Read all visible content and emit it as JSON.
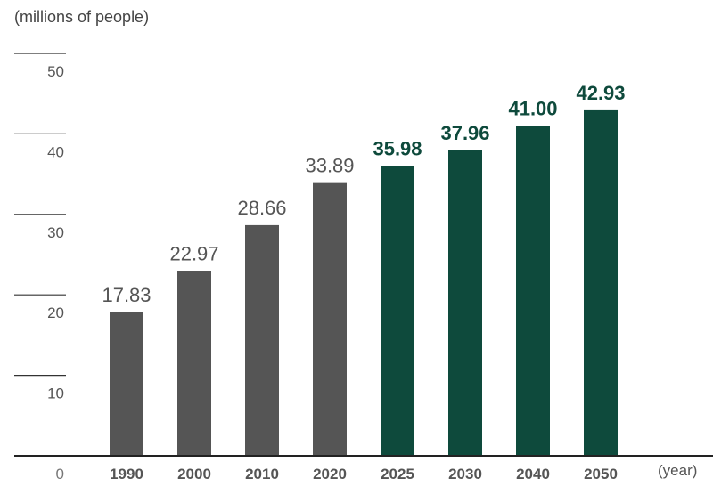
{
  "chart_data": {
    "type": "bar",
    "ylabel": "(millions of people)",
    "xlabel": "(year)",
    "categories": [
      "1990",
      "2000",
      "2010",
      "2020",
      "2025",
      "2030",
      "2040",
      "2050"
    ],
    "values": [
      17.83,
      22.97,
      28.66,
      33.89,
      35.98,
      37.96,
      41.0,
      42.93
    ],
    "value_labels": [
      "17.83",
      "22.97",
      "28.66",
      "33.89",
      "35.98",
      "37.96",
      "41.00",
      "42.93"
    ],
    "projected": [
      false,
      false,
      false,
      false,
      true,
      true,
      true,
      true
    ],
    "ylim": [
      0,
      50
    ],
    "yticks": [
      "0",
      "10",
      "20",
      "30",
      "40",
      "50"
    ],
    "ytick_values": [
      0,
      10,
      20,
      30,
      40,
      50
    ],
    "colors": {
      "actual": "#555555",
      "projected": "#0e4a3c",
      "axis": "#222222",
      "label": "#555555"
    }
  }
}
